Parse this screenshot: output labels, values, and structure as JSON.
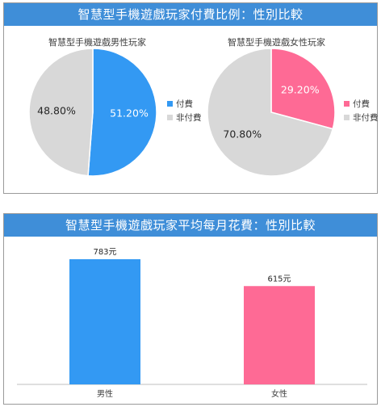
{
  "top_banner": "智慧型手機遊戲玩家付費比例：性別比較",
  "bottom_banner": "智慧型手機遊戲玩家平均每月花費：性別比較",
  "colors": {
    "banner": "#3f8ed8",
    "male_paid": "#3399f3",
    "female_paid": "#fe6a95",
    "unpaid": "#d8d8d8"
  },
  "chart_data": [
    {
      "type": "pie",
      "title": "智慧型手機遊戲男性玩家",
      "slices": [
        {
          "label": "付費",
          "value": 51.2,
          "display": "51.20%"
        },
        {
          "label": "非付費",
          "value": 48.8,
          "display": "48.80%"
        }
      ],
      "legend": [
        "付費",
        "非付費"
      ],
      "legend_position": "right"
    },
    {
      "type": "pie",
      "title": "智慧型手機遊戲女性玩家",
      "slices": [
        {
          "label": "付費",
          "value": 29.2,
          "display": "29.20%"
        },
        {
          "label": "非付費",
          "value": 70.8,
          "display": "70.80%"
        }
      ],
      "legend": [
        "付費",
        "非付費"
      ],
      "legend_position": "right"
    },
    {
      "type": "bar",
      "categories": [
        "男性",
        "女性"
      ],
      "values": [
        783,
        615
      ],
      "data_labels": [
        "783元",
        "615元"
      ]
    }
  ]
}
